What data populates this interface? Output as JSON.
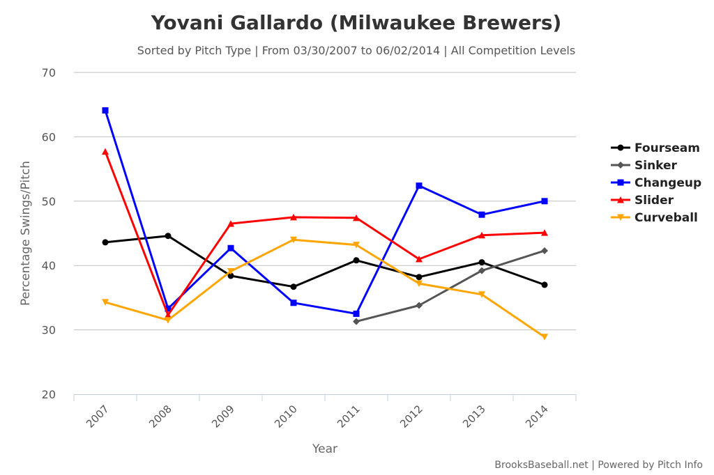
{
  "chart_data": {
    "type": "line",
    "title": "Yovani Gallardo (Milwaukee Brewers)",
    "subtitle": "Sorted by Pitch Type | From 03/30/2007 to 06/02/2014 | All Competition Levels",
    "xlabel": "Year",
    "ylabel": "Percentage Swings/Pitch",
    "categories": [
      "2007",
      "2008",
      "2009",
      "2010",
      "2011",
      "2012",
      "2013",
      "2014"
    ],
    "ylim": [
      20,
      70
    ],
    "yticks": [
      "20",
      "30",
      "40",
      "50",
      "60",
      "70"
    ],
    "grid": true,
    "legend_position": "right",
    "series": [
      {
        "name": "Fourseam",
        "color": "#000000",
        "marker": "circle",
        "values": [
          43.6,
          44.6,
          38.4,
          36.7,
          40.8,
          38.2,
          40.5,
          37.0
        ]
      },
      {
        "name": "Sinker",
        "color": "#555555",
        "marker": "diamond",
        "values": [
          null,
          null,
          null,
          null,
          31.3,
          33.8,
          39.2,
          42.3
        ]
      },
      {
        "name": "Changeup",
        "color": "#0000ff",
        "marker": "square",
        "values": [
          64.1,
          33.3,
          42.7,
          34.2,
          32.5,
          52.4,
          47.9,
          50.0
        ]
      },
      {
        "name": "Slider",
        "color": "#ff0000",
        "marker": "triangle",
        "values": [
          57.7,
          32.3,
          46.5,
          47.5,
          47.4,
          41.0,
          44.7,
          45.1
        ]
      },
      {
        "name": "Curveball",
        "color": "#ffa500",
        "marker": "triangle-down",
        "values": [
          34.3,
          31.5,
          39.1,
          44.0,
          43.2,
          37.2,
          35.5,
          28.9
        ]
      }
    ]
  },
  "credits": "BrooksBaseball.net | Powered by Pitch Info"
}
